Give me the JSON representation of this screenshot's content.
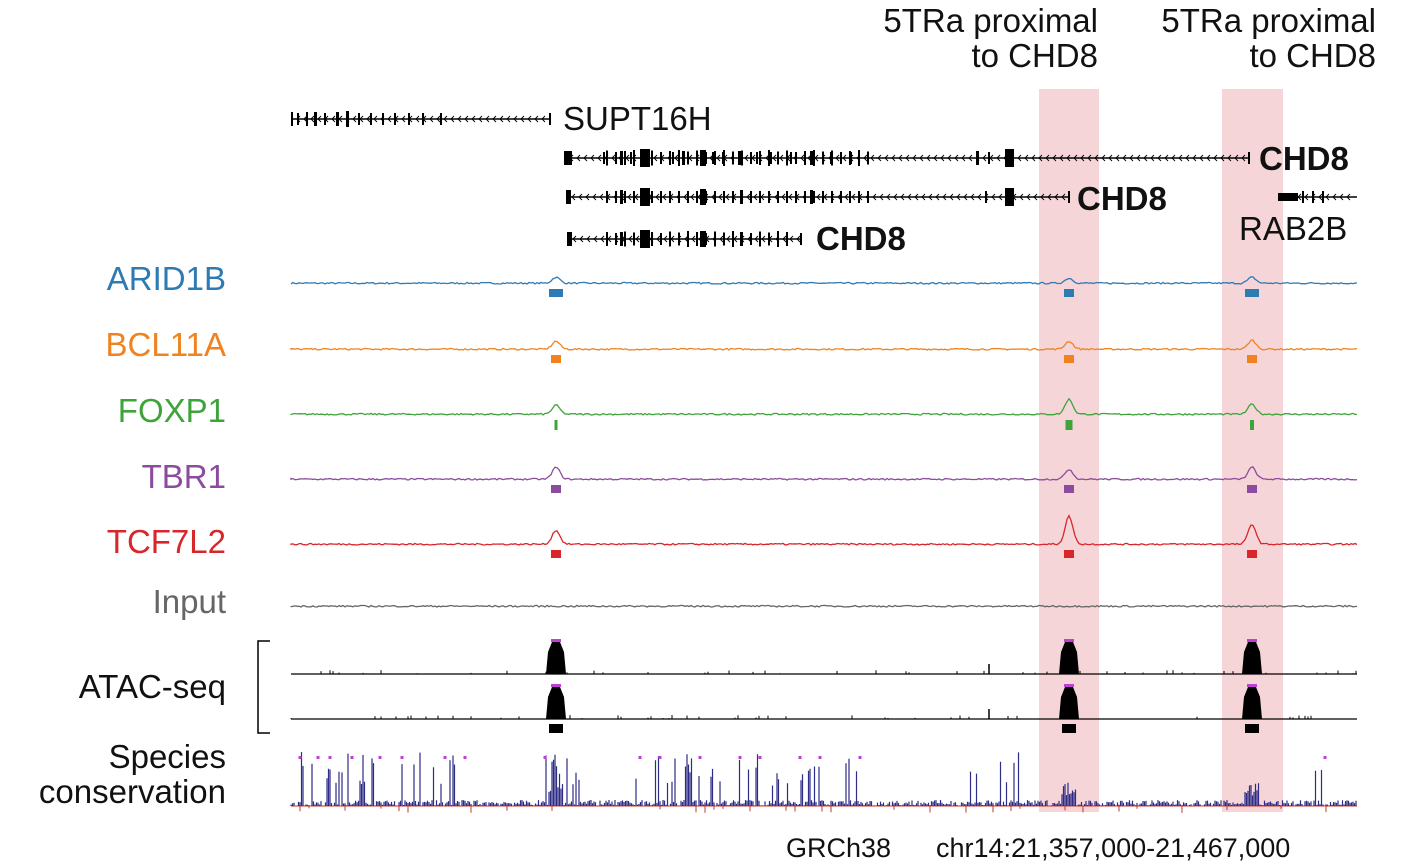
{
  "highlights": [
    {
      "line1": "5TRa proximal",
      "line2": "to CHD8"
    },
    {
      "line1": "5TRa proximal",
      "line2": "to CHD8"
    }
  ],
  "genes": {
    "supt16h": "SUPT16H",
    "chd8_1": "CHD8",
    "chd8_2": "CHD8",
    "chd8_3": "CHD8",
    "rab2b": "RAB2B"
  },
  "tracks": [
    {
      "label": "ARID1B",
      "color": "#2e7bb4"
    },
    {
      "label": "BCL11A",
      "color": "#f0831f"
    },
    {
      "label": "FOXP1",
      "color": "#3ea43a"
    },
    {
      "label": "TBR1",
      "color": "#8c4c9e"
    },
    {
      "label": "TCF7L2",
      "color": "#d9262b"
    },
    {
      "label": "Input",
      "color": "#666666"
    }
  ],
  "atac": {
    "label": "ATAC-seq",
    "color": "#000000"
  },
  "conservation": {
    "line1": "Species",
    "line2": "conservation",
    "color": "#2d2c86"
  },
  "footer": {
    "assembly": "GRCh38",
    "region": "chr14:21,357,000-21,467,000"
  },
  "colors": {
    "highlight": "#f6d5d9",
    "marker": "#c23fd6"
  }
}
